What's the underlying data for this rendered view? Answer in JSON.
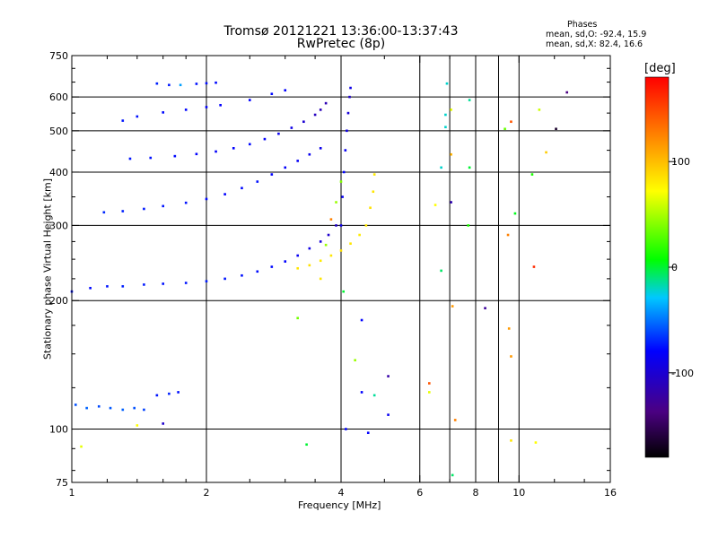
{
  "title": "Tromsø 20121221 13:36:00-13:37:43",
  "subtitle": "RwPretec (8p)",
  "stats": {
    "heading": "Phases",
    "o_mode": "mean, sd,O: -92.4, 15.9",
    "x_mode": "mean, sd,X:  82.4, 16.6"
  },
  "colorbar": {
    "unit": "[deg]",
    "range": [
      -180,
      180
    ],
    "ticks": [
      {
        "value": 100,
        "label": "100"
      },
      {
        "value": 0,
        "label": "0"
      },
      {
        "value": -100,
        "label": "-100"
      }
    ]
  },
  "chart_data": {
    "type": "scatter",
    "title": "Tromsø 20121221 13:36:00-13:37:43",
    "subtitle": "RwPretec (8p)",
    "xlabel": "Frequency [MHz]",
    "ylabel": "Stationary phase Virtual Height [km]",
    "x_scale": "log",
    "y_scale": "log",
    "xlim": [
      1,
      16
    ],
    "ylim": [
      75,
      750
    ],
    "grid": true,
    "x_ticks": [
      {
        "value": 1,
        "label": "1"
      },
      {
        "value": 2,
        "label": "2"
      },
      {
        "value": 4,
        "label": "4"
      },
      {
        "value": 6,
        "label": "6"
      },
      {
        "value": 8,
        "label": "8"
      },
      {
        "value": 10,
        "label": "10"
      },
      {
        "value": 16,
        "label": "16"
      }
    ],
    "x_grid": [
      2,
      4,
      6,
      7,
      8,
      9,
      10
    ],
    "y_ticks": [
      {
        "value": 75,
        "label": "75"
      },
      {
        "value": 100,
        "label": "100"
      },
      {
        "value": 200,
        "label": "200"
      },
      {
        "value": 300,
        "label": "300"
      },
      {
        "value": 400,
        "label": "400"
      },
      {
        "value": 500,
        "label": "500"
      },
      {
        "value": 600,
        "label": "600"
      },
      {
        "value": 750,
        "label": "750"
      }
    ],
    "y_grid": [
      100,
      200,
      300,
      400,
      500,
      600
    ],
    "point_value": "phase [deg]",
    "series": [
      {
        "points": [
          [
            1.0,
            210,
            -96
          ],
          [
            1.1,
            214,
            -98
          ],
          [
            1.2,
            216,
            -95
          ],
          [
            1.3,
            216,
            -92
          ],
          [
            1.45,
            218,
            -94
          ],
          [
            1.6,
            219,
            -96
          ],
          [
            1.8,
            220,
            -95
          ],
          [
            2.0,
            222,
            -93
          ],
          [
            2.2,
            225,
            -95
          ],
          [
            2.4,
            229,
            -96
          ],
          [
            2.6,
            234,
            -97
          ],
          [
            2.8,
            240,
            -98
          ],
          [
            3.0,
            247,
            -100
          ],
          [
            3.2,
            255,
            -105
          ],
          [
            3.4,
            265,
            -110
          ],
          [
            3.6,
            275,
            -115
          ],
          [
            3.75,
            285,
            -120
          ],
          [
            3.9,
            300,
            -122
          ]
        ]
      },
      {
        "points": [
          [
            3.2,
            238,
            110
          ],
          [
            3.4,
            242,
            112
          ],
          [
            3.6,
            248,
            108
          ],
          [
            3.8,
            255,
            110
          ],
          [
            4.0,
            262,
            112
          ],
          [
            4.2,
            272,
            110
          ],
          [
            4.4,
            285,
            108
          ],
          [
            4.55,
            300,
            110
          ],
          [
            4.65,
            330,
            112
          ],
          [
            4.72,
            360,
            110
          ],
          [
            4.75,
            395,
            108
          ]
        ]
      },
      {
        "points": [
          [
            1.18,
            322,
            -90
          ],
          [
            1.3,
            324,
            -92
          ],
          [
            1.45,
            328,
            -94
          ],
          [
            1.6,
            333,
            -95
          ],
          [
            1.8,
            339,
            -96
          ],
          [
            2.0,
            346,
            -98
          ],
          [
            2.2,
            355,
            -100
          ],
          [
            2.4,
            367,
            -98
          ],
          [
            2.6,
            380,
            -96
          ],
          [
            2.8,
            395,
            -100
          ],
          [
            3.0,
            410,
            -102
          ],
          [
            3.2,
            425,
            -104
          ],
          [
            3.4,
            440,
            -106
          ],
          [
            3.6,
            455,
            -108
          ]
        ]
      },
      {
        "points": [
          [
            1.35,
            430,
            -95
          ],
          [
            1.5,
            432,
            -96
          ],
          [
            1.7,
            436,
            -98
          ],
          [
            1.9,
            441,
            -100
          ],
          [
            2.1,
            447,
            -102
          ],
          [
            2.3,
            455,
            -100
          ],
          [
            2.5,
            465,
            -98
          ],
          [
            2.7,
            478,
            -102
          ],
          [
            2.9,
            492,
            -106
          ],
          [
            3.1,
            508,
            -110
          ],
          [
            3.3,
            525,
            -118
          ],
          [
            3.5,
            545,
            -125
          ],
          [
            3.6,
            560,
            -128
          ],
          [
            3.7,
            580,
            -130
          ]
        ]
      },
      {
        "points": [
          [
            1.3,
            528,
            -95
          ],
          [
            1.4,
            540,
            -96
          ],
          [
            1.6,
            552,
            -98
          ],
          [
            1.8,
            560,
            -99
          ],
          [
            2.0,
            568,
            -100
          ],
          [
            2.15,
            574,
            -101
          ],
          [
            2.5,
            590,
            -100
          ],
          [
            2.8,
            610,
            -98
          ],
          [
            3.0,
            622,
            -100
          ]
        ]
      },
      {
        "points": [
          [
            1.55,
            645,
            -92
          ],
          [
            1.65,
            640,
            -94
          ],
          [
            1.75,
            640,
            -60
          ],
          [
            1.9,
            644,
            -96
          ],
          [
            2.0,
            646,
            -97
          ],
          [
            2.1,
            648,
            -98
          ]
        ]
      },
      {
        "points": [
          [
            4.0,
            300,
            -110
          ],
          [
            4.03,
            350,
            -105
          ],
          [
            4.06,
            400,
            -100
          ],
          [
            4.09,
            450,
            -105
          ],
          [
            4.12,
            500,
            -110
          ],
          [
            4.15,
            550,
            -115
          ],
          [
            4.18,
            600,
            -120
          ],
          [
            4.2,
            630,
            -110
          ]
        ]
      },
      {
        "points": [
          [
            1.02,
            114,
            -80
          ],
          [
            1.08,
            112,
            -75
          ],
          [
            1.15,
            113,
            -82
          ],
          [
            1.22,
            112,
            -78
          ],
          [
            1.3,
            111,
            -76
          ],
          [
            1.38,
            112,
            -80
          ],
          [
            1.45,
            111,
            -84
          ],
          [
            1.55,
            120,
            -95
          ],
          [
            1.65,
            121,
            -92
          ],
          [
            1.73,
            122,
            -96
          ]
        ]
      },
      {
        "points": [
          [
            1.4,
            102,
            100
          ],
          [
            1.6,
            103,
            -120
          ],
          [
            1.05,
            91,
            90
          ],
          [
            3.35,
            92,
            -10
          ],
          [
            3.2,
            182,
            45
          ],
          [
            3.6,
            225,
            110
          ],
          [
            3.7,
            270,
            60
          ],
          [
            3.8,
            310,
            150
          ],
          [
            3.9,
            340,
            60
          ],
          [
            4.0,
            380,
            50
          ],
          [
            4.05,
            210,
            -10
          ],
          [
            4.1,
            100,
            -100
          ],
          [
            4.3,
            145,
            60
          ],
          [
            4.45,
            180,
            -100
          ],
          [
            4.45,
            122,
            -100
          ],
          [
            4.6,
            98,
            -100
          ],
          [
            4.75,
            120,
            -30
          ],
          [
            5.1,
            108,
            -105
          ],
          [
            5.1,
            133,
            -135
          ],
          [
            6.3,
            128,
            160
          ],
          [
            6.3,
            122,
            90
          ],
          [
            6.5,
            335,
            100
          ],
          [
            6.7,
            235,
            -20
          ],
          [
            6.7,
            410,
            -40
          ],
          [
            6.85,
            510,
            -40
          ],
          [
            6.85,
            545,
            -40
          ],
          [
            6.9,
            645,
            -40
          ],
          [
            7.05,
            560,
            90
          ],
          [
            7.05,
            440,
            130
          ],
          [
            7.05,
            340,
            -130
          ],
          [
            7.1,
            194,
            140
          ],
          [
            7.2,
            105,
            150
          ],
          [
            7.1,
            78,
            -20
          ],
          [
            7.7,
            300,
            10
          ],
          [
            7.75,
            410,
            -10
          ],
          [
            7.75,
            590,
            -30
          ],
          [
            8.4,
            192,
            -140
          ],
          [
            9.3,
            505,
            40
          ],
          [
            9.45,
            285,
            150
          ],
          [
            9.5,
            172,
            140
          ],
          [
            9.6,
            148,
            140
          ],
          [
            9.6,
            94,
            110
          ],
          [
            9.6,
            525,
            160
          ],
          [
            9.8,
            320,
            -5
          ],
          [
            10.7,
            395,
            10
          ],
          [
            10.8,
            240,
            170
          ],
          [
            10.9,
            93,
            100
          ],
          [
            11.1,
            560,
            80
          ],
          [
            11.5,
            445,
            120
          ],
          [
            12.1,
            505,
            -170
          ],
          [
            12.8,
            615,
            -150
          ]
        ]
      }
    ]
  }
}
